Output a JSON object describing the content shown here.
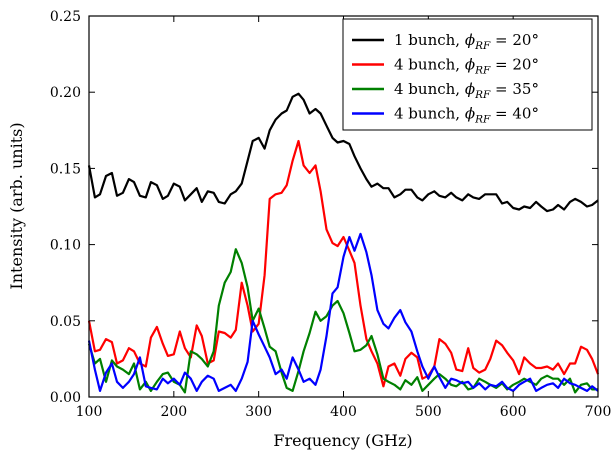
{
  "chart_data": {
    "type": "line",
    "title": "",
    "xlabel": "Frequency (GHz)",
    "ylabel": "Intensity (arb. units)",
    "xlim": [
      100,
      700
    ],
    "ylim": [
      0.0,
      0.25
    ],
    "xticks": [
      100,
      200,
      300,
      400,
      500,
      600,
      700
    ],
    "xtick_labels": [
      "100",
      "200",
      "300",
      "400",
      "500",
      "600",
      "700"
    ],
    "yticks": [
      0.0,
      0.05,
      0.1,
      0.15,
      0.2,
      0.25
    ],
    "ytick_labels": [
      "0.00",
      "0.05",
      "0.10",
      "0.15",
      "0.20",
      "0.25"
    ],
    "grid": false,
    "legend_position": "top-right",
    "series": [
      {
        "name": "1 bunch, ϕRF = 20°",
        "label_prefix": "1 bunch,",
        "label_equation": "= 20°",
        "color": "#000000",
        "x": [
          100,
          107,
          113,
          120,
          127,
          133,
          140,
          147,
          153,
          160,
          167,
          173,
          180,
          187,
          193,
          200,
          207,
          213,
          220,
          227,
          233,
          240,
          247,
          253,
          260,
          267,
          273,
          280,
          287,
          293,
          300,
          307,
          313,
          320,
          327,
          333,
          340,
          347,
          353,
          360,
          367,
          373,
          380,
          387,
          393,
          400,
          407,
          413,
          420,
          427,
          433,
          440,
          447,
          453,
          460,
          467,
          473,
          480,
          487,
          493,
          500,
          507,
          513,
          520,
          527,
          533,
          540,
          547,
          553,
          560,
          567,
          573,
          580,
          587,
          593,
          600,
          607,
          613,
          620,
          627,
          633,
          640,
          647,
          653,
          660,
          667,
          673,
          680,
          687,
          693,
          700
        ],
        "y": [
          0.152,
          0.131,
          0.133,
          0.145,
          0.147,
          0.132,
          0.134,
          0.143,
          0.141,
          0.132,
          0.131,
          0.141,
          0.139,
          0.13,
          0.132,
          0.14,
          0.138,
          0.129,
          0.133,
          0.137,
          0.128,
          0.135,
          0.134,
          0.128,
          0.127,
          0.133,
          0.135,
          0.14,
          0.155,
          0.168,
          0.17,
          0.163,
          0.175,
          0.182,
          0.186,
          0.188,
          0.197,
          0.199,
          0.195,
          0.186,
          0.189,
          0.186,
          0.178,
          0.17,
          0.167,
          0.168,
          0.166,
          0.158,
          0.15,
          0.143,
          0.138,
          0.14,
          0.137,
          0.137,
          0.131,
          0.133,
          0.136,
          0.136,
          0.131,
          0.129,
          0.133,
          0.135,
          0.132,
          0.131,
          0.134,
          0.131,
          0.129,
          0.133,
          0.131,
          0.13,
          0.133,
          0.133,
          0.133,
          0.127,
          0.128,
          0.124,
          0.123,
          0.125,
          0.124,
          0.128,
          0.125,
          0.122,
          0.123,
          0.126,
          0.123,
          0.128,
          0.13,
          0.128,
          0.125,
          0.126,
          0.129
        ]
      },
      {
        "name": "4 bunch, ϕRF = 20°",
        "label_prefix": "4 bunch,",
        "label_equation": "= 20°",
        "color": "#ff0000",
        "x": [
          100,
          107,
          113,
          120,
          127,
          133,
          140,
          147,
          153,
          160,
          167,
          173,
          180,
          187,
          193,
          200,
          207,
          213,
          220,
          227,
          233,
          240,
          247,
          253,
          260,
          267,
          273,
          280,
          287,
          293,
          300,
          307,
          313,
          320,
          327,
          333,
          340,
          347,
          353,
          360,
          367,
          373,
          380,
          387,
          393,
          400,
          407,
          413,
          420,
          427,
          433,
          440,
          447,
          453,
          460,
          467,
          473,
          480,
          487,
          493,
          500,
          507,
          513,
          520,
          527,
          533,
          540,
          547,
          553,
          560,
          567,
          573,
          580,
          587,
          593,
          600,
          607,
          613,
          620,
          627,
          633,
          640,
          647,
          653,
          660,
          667,
          673,
          680,
          687,
          693,
          700
        ],
        "y": [
          0.05,
          0.03,
          0.031,
          0.038,
          0.036,
          0.022,
          0.024,
          0.032,
          0.03,
          0.022,
          0.02,
          0.039,
          0.046,
          0.035,
          0.027,
          0.028,
          0.043,
          0.032,
          0.026,
          0.047,
          0.04,
          0.022,
          0.024,
          0.043,
          0.042,
          0.039,
          0.044,
          0.075,
          0.06,
          0.043,
          0.048,
          0.08,
          0.13,
          0.133,
          0.134,
          0.139,
          0.155,
          0.168,
          0.152,
          0.147,
          0.152,
          0.135,
          0.11,
          0.101,
          0.099,
          0.105,
          0.096,
          0.088,
          0.06,
          0.038,
          0.03,
          0.022,
          0.007,
          0.02,
          0.022,
          0.014,
          0.025,
          0.029,
          0.026,
          0.012,
          0.014,
          0.02,
          0.038,
          0.035,
          0.029,
          0.018,
          0.017,
          0.032,
          0.019,
          0.016,
          0.018,
          0.025,
          0.037,
          0.034,
          0.029,
          0.024,
          0.015,
          0.026,
          0.022,
          0.019,
          0.019,
          0.02,
          0.018,
          0.022,
          0.015,
          0.022,
          0.022,
          0.033,
          0.031,
          0.025,
          0.015
        ]
      },
      {
        "name": "4 bunch, ϕRF = 35°",
        "label_prefix": "4 bunch,",
        "label_equation": "= 35°",
        "color": "#008000",
        "x": [
          100,
          107,
          113,
          120,
          127,
          133,
          140,
          147,
          153,
          160,
          167,
          173,
          180,
          187,
          193,
          200,
          207,
          213,
          220,
          227,
          233,
          240,
          247,
          253,
          260,
          267,
          273,
          280,
          287,
          293,
          300,
          307,
          313,
          320,
          327,
          333,
          340,
          347,
          353,
          360,
          367,
          373,
          380,
          387,
          393,
          400,
          407,
          413,
          420,
          427,
          433,
          440,
          447,
          453,
          460,
          467,
          473,
          480,
          487,
          493,
          500,
          507,
          513,
          520,
          527,
          533,
          540,
          547,
          553,
          560,
          567,
          573,
          580,
          587,
          593,
          600,
          607,
          613,
          620,
          627,
          633,
          640,
          647,
          653,
          660,
          667,
          673,
          680,
          687,
          693,
          700
        ],
        "y": [
          0.035,
          0.022,
          0.025,
          0.01,
          0.024,
          0.02,
          0.018,
          0.015,
          0.022,
          0.005,
          0.01,
          0.004,
          0.01,
          0.015,
          0.016,
          0.01,
          0.008,
          0.003,
          0.03,
          0.028,
          0.025,
          0.02,
          0.03,
          0.06,
          0.075,
          0.082,
          0.097,
          0.088,
          0.072,
          0.05,
          0.058,
          0.045,
          0.033,
          0.03,
          0.016,
          0.006,
          0.004,
          0.017,
          0.03,
          0.042,
          0.056,
          0.05,
          0.053,
          0.06,
          0.063,
          0.055,
          0.042,
          0.03,
          0.031,
          0.034,
          0.04,
          0.028,
          0.012,
          0.01,
          0.008,
          0.005,
          0.011,
          0.008,
          0.013,
          0.004,
          0.008,
          0.012,
          0.015,
          0.012,
          0.008,
          0.007,
          0.01,
          0.005,
          0.006,
          0.012,
          0.01,
          0.008,
          0.006,
          0.009,
          0.005,
          0.008,
          0.01,
          0.012,
          0.01,
          0.008,
          0.012,
          0.014,
          0.012,
          0.012,
          0.008,
          0.012,
          0.003,
          0.008,
          0.009,
          0.005,
          0.005
        ]
      },
      {
        "name": "4 bunch, ϕRF = 40°",
        "label_prefix": "4 bunch,",
        "label_equation": "= 40°",
        "color": "#0000ff",
        "x": [
          100,
          107,
          113,
          120,
          127,
          133,
          140,
          147,
          153,
          160,
          167,
          173,
          180,
          187,
          193,
          200,
          207,
          213,
          220,
          227,
          233,
          240,
          247,
          253,
          260,
          267,
          273,
          280,
          287,
          293,
          300,
          307,
          313,
          320,
          327,
          333,
          340,
          347,
          353,
          360,
          367,
          373,
          380,
          387,
          393,
          400,
          407,
          413,
          420,
          427,
          433,
          440,
          447,
          453,
          460,
          467,
          473,
          480,
          487,
          493,
          500,
          507,
          513,
          520,
          527,
          533,
          540,
          547,
          553,
          560,
          567,
          573,
          580,
          587,
          593,
          600,
          607,
          613,
          620,
          627,
          633,
          640,
          647,
          653,
          660,
          667,
          673,
          680,
          687,
          693,
          700
        ],
        "y": [
          0.037,
          0.018,
          0.004,
          0.016,
          0.022,
          0.01,
          0.006,
          0.01,
          0.015,
          0.026,
          0.007,
          0.006,
          0.005,
          0.012,
          0.009,
          0.012,
          0.008,
          0.016,
          0.012,
          0.004,
          0.01,
          0.014,
          0.012,
          0.004,
          0.006,
          0.008,
          0.004,
          0.012,
          0.023,
          0.05,
          0.041,
          0.033,
          0.026,
          0.015,
          0.018,
          0.012,
          0.026,
          0.018,
          0.01,
          0.012,
          0.008,
          0.018,
          0.04,
          0.068,
          0.072,
          0.092,
          0.105,
          0.096,
          0.107,
          0.095,
          0.08,
          0.057,
          0.048,
          0.045,
          0.052,
          0.057,
          0.049,
          0.043,
          0.03,
          0.02,
          0.012,
          0.02,
          0.013,
          0.006,
          0.012,
          0.011,
          0.009,
          0.01,
          0.006,
          0.009,
          0.005,
          0.008,
          0.007,
          0.01,
          0.006,
          0.004,
          0.008,
          0.01,
          0.012,
          0.004,
          0.006,
          0.008,
          0.009,
          0.006,
          0.012,
          0.009,
          0.008,
          0.006,
          0.004,
          0.007,
          0.004
        ]
      }
    ]
  }
}
